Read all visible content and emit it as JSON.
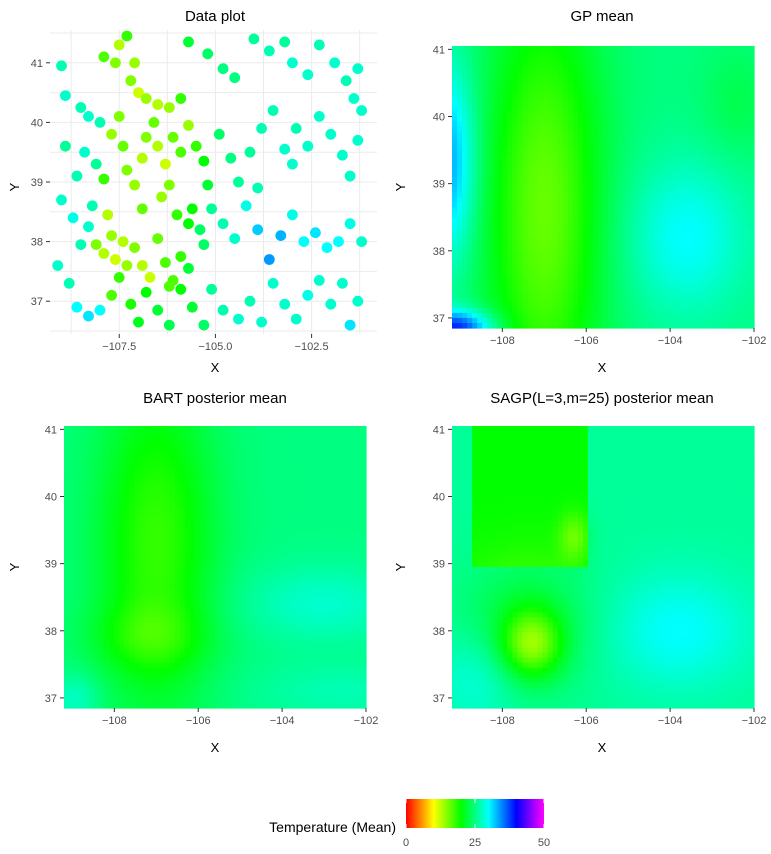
{
  "palette": [
    "#ff0000",
    "#ff8000",
    "#ffff00",
    "#80ff00",
    "#00ff00",
    "#00ff80",
    "#00ffff",
    "#0080ff",
    "#0000ff",
    "#8000ff",
    "#ff00ff"
  ],
  "chart_data": [
    {
      "id": "data-plot",
      "type": "scatter",
      "title": "Data plot",
      "xlabel": "X",
      "ylabel": "Y",
      "xlim": [
        -109.3,
        -100.8
      ],
      "ylim": [
        36.45,
        41.55
      ],
      "xticks": [
        -107.5,
        -105.0,
        -102.5
      ],
      "xtick_labels": [
        "−107.5",
        "−105.0",
        "−102.5"
      ],
      "yticks": [
        37,
        38,
        39,
        40,
        41
      ],
      "ytick_labels": [
        "37",
        "38",
        "39",
        "40",
        "41"
      ],
      "grid": true,
      "color_value": "Temperature (Mean)",
      "points": [
        [
          -109.0,
          40.95,
          27
        ],
        [
          -108.9,
          40.45,
          28
        ],
        [
          -108.5,
          40.25,
          27
        ],
        [
          -108.3,
          40.1,
          28
        ],
        [
          -108.0,
          40.0,
          27
        ],
        [
          -107.9,
          41.1,
          17
        ],
        [
          -107.6,
          41.0,
          15
        ],
        [
          -107.5,
          41.3,
          13
        ],
        [
          -107.3,
          41.45,
          18
        ],
        [
          -107.1,
          41.0,
          14
        ],
        [
          -107.2,
          40.7,
          15
        ],
        [
          -107.0,
          40.5,
          12
        ],
        [
          -106.8,
          40.4,
          14
        ],
        [
          -106.5,
          40.3,
          13
        ],
        [
          -106.2,
          40.25,
          14
        ],
        [
          -105.9,
          40.4,
          18
        ],
        [
          -105.7,
          41.35,
          22
        ],
        [
          -105.2,
          41.15,
          24
        ],
        [
          -104.8,
          40.9,
          25
        ],
        [
          -104.5,
          40.75,
          25
        ],
        [
          -104.0,
          41.4,
          26
        ],
        [
          -103.6,
          41.2,
          27
        ],
        [
          -103.2,
          41.35,
          26
        ],
        [
          -103.0,
          41.0,
          28
        ],
        [
          -102.6,
          40.8,
          28
        ],
        [
          -102.3,
          41.3,
          27
        ],
        [
          -101.9,
          41.0,
          28
        ],
        [
          -101.6,
          40.7,
          27
        ],
        [
          -101.3,
          40.9,
          28
        ],
        [
          -101.4,
          40.4,
          28
        ],
        [
          -108.9,
          39.6,
          26
        ],
        [
          -108.6,
          39.1,
          27
        ],
        [
          -108.4,
          39.5,
          28
        ],
        [
          -108.1,
          39.3,
          26
        ],
        [
          -107.9,
          39.05,
          18
        ],
        [
          -107.7,
          39.8,
          14
        ],
        [
          -107.5,
          40.1,
          15
        ],
        [
          -107.4,
          39.6,
          16
        ],
        [
          -107.3,
          39.2,
          15
        ],
        [
          -107.1,
          38.95,
          14
        ],
        [
          -106.9,
          39.4,
          13
        ],
        [
          -106.8,
          39.75,
          15
        ],
        [
          -106.6,
          40.0,
          16
        ],
        [
          -106.5,
          39.6,
          13
        ],
        [
          -106.3,
          39.3,
          12
        ],
        [
          -106.2,
          38.95,
          15
        ],
        [
          -106.1,
          39.75,
          16
        ],
        [
          -105.9,
          39.5,
          17
        ],
        [
          -105.7,
          39.95,
          14
        ],
        [
          -105.5,
          39.6,
          18
        ],
        [
          -105.3,
          39.35,
          20
        ],
        [
          -105.2,
          38.95,
          22
        ],
        [
          -104.9,
          39.8,
          24
        ],
        [
          -104.6,
          39.4,
          25
        ],
        [
          -104.4,
          39.0,
          26
        ],
        [
          -104.1,
          39.5,
          26
        ],
        [
          -103.8,
          39.9,
          27
        ],
        [
          -103.5,
          40.2,
          27
        ],
        [
          -103.2,
          39.55,
          28
        ],
        [
          -102.9,
          39.9,
          27
        ],
        [
          -102.6,
          39.6,
          28
        ],
        [
          -102.3,
          40.1,
          28
        ],
        [
          -102.0,
          39.8,
          28
        ],
        [
          -101.7,
          39.45,
          28
        ],
        [
          -101.5,
          39.1,
          28
        ],
        [
          -101.3,
          39.7,
          28
        ],
        [
          -101.2,
          40.2,
          28
        ],
        [
          -103.0,
          39.3,
          28
        ],
        [
          -103.9,
          38.9,
          27
        ],
        [
          -109.0,
          38.7,
          28
        ],
        [
          -108.7,
          38.4,
          29
        ],
        [
          -108.5,
          37.95,
          27
        ],
        [
          -108.3,
          38.25,
          28
        ],
        [
          -108.1,
          37.95,
          15
        ],
        [
          -107.9,
          37.8,
          13
        ],
        [
          -107.7,
          38.1,
          14
        ],
        [
          -107.6,
          37.7,
          12
        ],
        [
          -107.4,
          38.0,
          13
        ],
        [
          -107.3,
          37.6,
          14
        ],
        [
          -107.1,
          37.9,
          15
        ],
        [
          -106.9,
          37.6,
          13
        ],
        [
          -106.7,
          37.4,
          12
        ],
        [
          -106.5,
          38.05,
          16
        ],
        [
          -106.3,
          37.65,
          17
        ],
        [
          -106.1,
          37.35,
          17
        ],
        [
          -105.9,
          37.75,
          18
        ],
        [
          -105.7,
          38.3,
          20
        ],
        [
          -105.6,
          38.55,
          20
        ],
        [
          -105.3,
          37.95,
          24
        ],
        [
          -105.1,
          38.55,
          26
        ],
        [
          -104.8,
          38.3,
          27
        ],
        [
          -104.5,
          38.05,
          28
        ],
        [
          -104.2,
          38.6,
          29
        ],
        [
          -103.9,
          38.2,
          32
        ],
        [
          -103.6,
          37.7,
          34
        ],
        [
          -103.3,
          38.1,
          33
        ],
        [
          -103.0,
          38.45,
          29
        ],
        [
          -102.7,
          38.0,
          30
        ],
        [
          -102.4,
          38.15,
          31
        ],
        [
          -102.1,
          37.9,
          30
        ],
        [
          -101.8,
          38.0,
          30
        ],
        [
          -101.5,
          38.3,
          29
        ],
        [
          -101.2,
          38.0,
          28
        ],
        [
          -109.1,
          37.6,
          28
        ],
        [
          -108.8,
          37.3,
          27
        ],
        [
          -108.6,
          36.9,
          30
        ],
        [
          -108.3,
          36.75,
          31
        ],
        [
          -108.0,
          36.85,
          30
        ],
        [
          -107.7,
          37.1,
          17
        ],
        [
          -107.5,
          37.4,
          18
        ],
        [
          -107.2,
          36.95,
          19
        ],
        [
          -107.0,
          36.65,
          21
        ],
        [
          -106.8,
          37.15,
          20
        ],
        [
          -106.5,
          36.85,
          22
        ],
        [
          -106.2,
          36.6,
          23
        ],
        [
          -105.9,
          37.2,
          20
        ],
        [
          -105.6,
          36.9,
          22
        ],
        [
          -105.3,
          36.6,
          24
        ],
        [
          -105.1,
          37.2,
          26
        ],
        [
          -104.8,
          36.85,
          27
        ],
        [
          -104.4,
          36.7,
          28
        ],
        [
          -104.1,
          37.0,
          27
        ],
        [
          -103.8,
          36.65,
          28
        ],
        [
          -103.5,
          37.3,
          28
        ],
        [
          -103.2,
          36.95,
          28
        ],
        [
          -102.9,
          36.7,
          28
        ],
        [
          -102.6,
          37.1,
          29
        ],
        [
          -102.3,
          37.35,
          28
        ],
        [
          -102.0,
          36.95,
          28
        ],
        [
          -101.7,
          37.3,
          28
        ],
        [
          -101.5,
          36.6,
          31
        ],
        [
          -101.3,
          37.0,
          28
        ],
        [
          -106.2,
          37.25,
          17
        ],
        [
          -105.7,
          37.55,
          22
        ],
        [
          -108.2,
          38.6,
          27
        ],
        [
          -107.8,
          38.45,
          13
        ],
        [
          -106.9,
          38.55,
          16
        ],
        [
          -106.4,
          38.75,
          14
        ],
        [
          -106.0,
          38.45,
          18
        ],
        [
          -105.4,
          38.2,
          24
        ]
      ]
    },
    {
      "id": "gp-mean",
      "type": "heatmap",
      "title": "GP mean",
      "xlabel": "X",
      "ylabel": "Y",
      "xlim": [
        -109.2,
        -102.0
      ],
      "ylim": [
        36.85,
        41.05
      ],
      "xticks": [
        -108,
        -106,
        -104,
        -102
      ],
      "xtick_labels": [
        "−108",
        "−106",
        "−104",
        "−102"
      ],
      "yticks": [
        37,
        38,
        39,
        40,
        41
      ],
      "ytick_labels": [
        "37",
        "38",
        "39",
        "40",
        "41"
      ],
      "grid": false,
      "color_value": "Temperature (Mean)"
    },
    {
      "id": "bart-posterior-mean",
      "type": "heatmap",
      "title": "BART posterior mean",
      "xlabel": "X",
      "ylabel": "Y",
      "xlim": [
        -109.2,
        -102.0
      ],
      "ylim": [
        36.85,
        41.05
      ],
      "xticks": [
        -108,
        -106,
        -104,
        -102
      ],
      "xtick_labels": [
        "−108",
        "−106",
        "−104",
        "−102"
      ],
      "yticks": [
        37,
        38,
        39,
        40,
        41
      ],
      "ytick_labels": [
        "37",
        "38",
        "39",
        "40",
        "41"
      ],
      "grid": false,
      "color_value": "Temperature (Mean)"
    },
    {
      "id": "sagp-posterior-mean",
      "type": "heatmap",
      "title": "SAGP(L=3,m=25) posterior mean",
      "xlabel": "X",
      "ylabel": "Y",
      "xlim": [
        -109.2,
        -102.0
      ],
      "ylim": [
        36.85,
        41.05
      ],
      "xticks": [
        -108,
        -106,
        -104,
        -102
      ],
      "xtick_labels": [
        "−108",
        "−106",
        "−104",
        "−102"
      ],
      "yticks": [
        37,
        38,
        39,
        40,
        41
      ],
      "ytick_labels": [
        "37",
        "38",
        "39",
        "40",
        "41"
      ],
      "grid": false,
      "color_value": "Temperature (Mean)"
    }
  ],
  "legend": {
    "title": "Temperature (Mean)",
    "placement": "bottom-center",
    "ticks": [
      0,
      25,
      50
    ],
    "tick_labels": [
      "0",
      "25",
      "50"
    ],
    "range": [
      0,
      50
    ]
  }
}
